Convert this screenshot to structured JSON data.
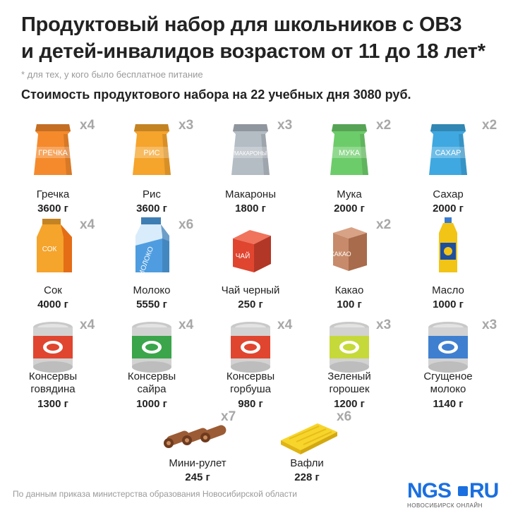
{
  "header": {
    "title_line1": "Продуктовый набор для школьников с ОВЗ",
    "title_line2": "и детей-инвалидов возрастом от 11 до 18 лет*",
    "note": "* для тех, у кого было бесплатное питание",
    "cost": "Стоимость продуктового набора на 22 учебных дня 3080 руб."
  },
  "items": [
    {
      "name": "Гречка",
      "qty": "3600 г",
      "mult": "x4",
      "label": "ГРЕЧКА",
      "color": "#f58a2c",
      "icon": "grain-bag-icon"
    },
    {
      "name": "Рис",
      "qty": "3600 г",
      "mult": "x3",
      "label": "РИС",
      "color": "#f5a42c",
      "icon": "grain-bag-icon"
    },
    {
      "name": "Макароны",
      "qty": "1800 г",
      "mult": "x3",
      "label": "МАКАРОНЫ",
      "color": "#b4bcc4",
      "icon": "grain-bag-icon"
    },
    {
      "name": "Мука",
      "qty": "2000 г",
      "mult": "x2",
      "label": "МУКА",
      "color": "#6dcc6a",
      "icon": "grain-bag-icon"
    },
    {
      "name": "Сахар",
      "qty": "2000 г",
      "mult": "x2",
      "label": "САХАР",
      "color": "#3fa8e0",
      "icon": "grain-bag-icon"
    },
    {
      "name": "Сок",
      "qty": "4000 г",
      "mult": "x4",
      "label": "СОК",
      "color": "#f5a42c",
      "icon": "juice-carton-icon"
    },
    {
      "name": "Молоко",
      "qty": "5550 г",
      "mult": "x6",
      "label": "МОЛОКО",
      "color": "#4f9de0",
      "icon": "milk-carton-icon"
    },
    {
      "name": "Чай черный",
      "qty": "250 г",
      "mult": "",
      "label": "ЧАЙ",
      "color": "#e0452f",
      "icon": "tea-box-icon"
    },
    {
      "name": "Какао",
      "qty": "100 г",
      "mult": "x2",
      "label": "КАКАО",
      "color": "#c78a6a",
      "icon": "cocoa-box-icon"
    },
    {
      "name": "Масло",
      "qty": "1000 г",
      "mult": "",
      "label": "",
      "color": "#f2c416",
      "icon": "oil-bottle-icon"
    },
    {
      "name": "Консервы говядина",
      "qty": "1300 г",
      "mult": "x4",
      "label": "",
      "color": "#e0452f",
      "icon": "can-icon"
    },
    {
      "name": "Консервы сайра",
      "qty": "1000 г",
      "mult": "x4",
      "label": "",
      "color": "#3aa54a",
      "icon": "can-icon"
    },
    {
      "name": "Консервы горбуша",
      "qty": "980 г",
      "mult": "x4",
      "label": "",
      "color": "#e0452f",
      "icon": "can-icon"
    },
    {
      "name": "Зеленый горошек",
      "qty": "1200 г",
      "mult": "x3",
      "label": "",
      "color": "#c6d93a",
      "icon": "can-icon"
    },
    {
      "name": "Сгущеное молоко",
      "qty": "1140 г",
      "mult": "x3",
      "label": "",
      "color": "#3f7fd0",
      "icon": "can-icon"
    },
    {
      "name": "Мини-рулет",
      "qty": "245 г",
      "mult": "x7",
      "label": "",
      "color": "#9b5b34",
      "icon": "mini-roll-icon"
    },
    {
      "name": "Вафли",
      "qty": "228 г",
      "mult": "x6",
      "label": "",
      "color": "#f7d52a",
      "icon": "wafer-icon"
    }
  ],
  "footer": {
    "source": "По данным приказа министерства образования Новосибирской области",
    "logo_left": "NGS",
    "logo_right": "RU",
    "logo_sub": "НОВОСИБИРСК ОНЛАЙН"
  }
}
